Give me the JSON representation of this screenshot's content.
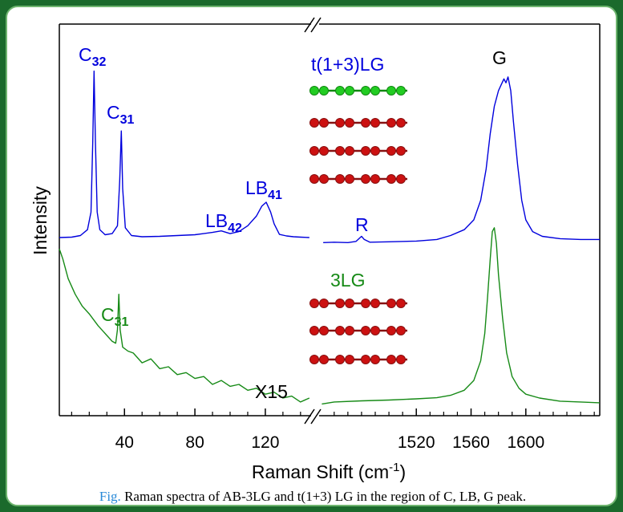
{
  "chart_data": [
    {
      "type": "line",
      "ylabel": "Intensity",
      "xlabel": {
        "text": "Raman Shift (cm",
        "sup": "-1",
        "after": ")"
      },
      "annotations": [
        {
          "text": "C",
          "sub": "32"
        },
        {
          "text": "C",
          "sub": "31"
        },
        {
          "text": "LB",
          "sub": "42"
        },
        {
          "text": "LB",
          "sub": "41"
        },
        {
          "text": "R"
        },
        {
          "text": "G"
        },
        {
          "text": "C",
          "sub": "31"
        },
        {
          "text": "X15"
        }
      ],
      "xlim": [
        3,
        146
      ],
      "ylim": [
        0,
        100
      ],
      "xticks": [
        40,
        80,
        120
      ],
      "xminorticks": [
        10,
        20,
        30,
        50,
        60,
        70,
        90,
        100,
        110,
        130,
        140
      ],
      "series": [
        {
          "name": "t(1+3)LG",
          "color": "#0000dd",
          "x": [
            3,
            10,
            15,
            19,
            21,
            22,
            22.7,
            23.5,
            24.5,
            26,
            29,
            33,
            36,
            37.3,
            38.2,
            39,
            40.5,
            44,
            50,
            60,
            70,
            80,
            90,
            95,
            100,
            105,
            110,
            115,
            118,
            120.5,
            123,
            125,
            128,
            132,
            136,
            140,
            145
          ],
          "values": [
            45.5,
            45.6,
            46,
            47.5,
            52,
            70,
            88,
            70,
            52,
            47.5,
            46.2,
            46.5,
            48.5,
            60,
            72.7,
            58,
            48,
            46,
            45.7,
            45.8,
            46,
            46.2,
            46.8,
            47.2,
            46.5,
            47,
            48.5,
            51,
            53.5,
            54.5,
            52,
            49,
            46.3,
            45.9,
            45.7,
            45.6,
            45.5
          ]
        },
        {
          "name": "3LG",
          "color": "#168a16",
          "x": [
            3,
            5,
            8,
            12,
            16,
            20,
            25,
            30,
            33,
            35,
            36,
            36.8,
            37.5,
            39,
            42,
            45,
            50,
            55,
            60,
            65,
            70,
            75,
            80,
            85,
            90,
            95,
            100,
            105,
            110,
            115,
            120,
            125,
            130,
            135,
            140,
            145
          ],
          "values": [
            42.6,
            40,
            35,
            31,
            28,
            26,
            23,
            20.5,
            19,
            18.5,
            22,
            31,
            22,
            17.5,
            16.5,
            16,
            13.5,
            14.5,
            12,
            12.5,
            10.5,
            11,
            9.5,
            10,
            8,
            9,
            7.5,
            8,
            6.5,
            7,
            5.5,
            6,
            4.5,
            5,
            3.5,
            4.5
          ]
        }
      ]
    },
    {
      "type": "line",
      "xlim": [
        1449,
        1654
      ],
      "ylim": [
        0,
        100
      ],
      "xticks": [
        1520,
        1560,
        1600
      ],
      "xminorticks": [
        1460,
        1470,
        1480,
        1490,
        1500,
        1510,
        1530,
        1540,
        1550,
        1570,
        1580,
        1590,
        1610,
        1620,
        1630,
        1640,
        1650
      ],
      "series": [
        {
          "color": "#0000dd",
          "x": [
            1452,
            1460,
            1470,
            1476,
            1479,
            1480,
            1482,
            1486,
            1500,
            1520,
            1535,
            1545,
            1555,
            1562,
            1567,
            1571,
            1574,
            1577,
            1580,
            1582,
            1584,
            1585.5,
            1587,
            1589,
            1591,
            1594,
            1597,
            1600,
            1605,
            1612,
            1625,
            1640,
            1654
          ],
          "values": [
            44.2,
            44.3,
            44.2,
            44.5,
            45.5,
            45.8,
            45,
            44.3,
            44.4,
            44.6,
            45,
            46,
            47.5,
            50,
            55,
            63,
            72,
            79,
            83,
            84.5,
            86,
            85,
            86.5,
            83,
            75,
            64,
            55,
            50,
            47,
            45.8,
            45.2,
            45,
            45
          ]
        },
        {
          "color": "#168a16",
          "x": [
            1451,
            1460,
            1480,
            1500,
            1520,
            1535,
            1545,
            1555,
            1562,
            1567,
            1570,
            1572,
            1574,
            1575.5,
            1577,
            1578.5,
            1580,
            1583,
            1586,
            1590,
            1595,
            1600,
            1610,
            1625,
            1640,
            1654
          ],
          "values": [
            3,
            3.5,
            3.8,
            4,
            4.3,
            4.6,
            5.2,
            6.5,
            9,
            14,
            21,
            30,
            40,
            47,
            48,
            44,
            36,
            25,
            16,
            10,
            7,
            5.5,
            4.5,
            3.7,
            3.5,
            3.3
          ]
        }
      ]
    }
  ],
  "caption": {
    "label": "Fig.",
    "text": "Raman spectra of AB-3LG and t(1+3) LG in the region of C, LB, G peak."
  }
}
